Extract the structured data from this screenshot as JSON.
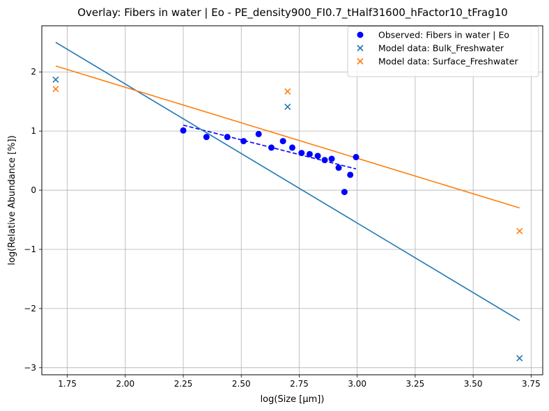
{
  "chart_data": {
    "type": "scatter",
    "title": "Overlay: Fibers in water | Eo - PE_density900_FI0.7_tHalf31600_hFactor10_tFrag10",
    "xlabel": "log(Size [µm])",
    "ylabel": "log(Relative Abundance [%])",
    "xlim": [
      1.64,
      3.8
    ],
    "ylim": [
      -3.12,
      2.78
    ],
    "xticks": [
      1.75,
      2.0,
      2.25,
      2.5,
      2.75,
      3.0,
      3.25,
      3.5,
      3.75
    ],
    "xtick_labels": [
      "1.75",
      "2.00",
      "2.25",
      "2.50",
      "2.75",
      "3.00",
      "3.25",
      "3.50",
      "3.75"
    ],
    "yticks": [
      -3,
      -2,
      -1,
      0,
      1,
      2
    ],
    "ytick_labels": [
      "−3",
      "−2",
      "−1",
      "0",
      "1",
      "2"
    ],
    "grid": true,
    "legend_position": "top-right",
    "series": [
      {
        "name": "Observed: Fibers in water | Eo",
        "kind": "scatter-dot",
        "color": "#0000ff",
        "x": [
          2.25,
          2.35,
          2.44,
          2.51,
          2.575,
          2.63,
          2.68,
          2.72,
          2.76,
          2.795,
          2.83,
          2.86,
          2.89,
          2.92,
          2.945,
          2.97,
          2.995
        ],
        "y": [
          1.01,
          0.9,
          0.9,
          0.83,
          0.95,
          0.72,
          0.83,
          0.72,
          0.63,
          0.61,
          0.58,
          0.51,
          0.53,
          0.38,
          -0.03,
          0.26,
          0.56
        ]
      },
      {
        "name": "Model data: Bulk_Freshwater",
        "kind": "scatter-x",
        "color": "#1f77b4",
        "x": [
          1.7,
          2.7,
          3.7
        ],
        "y": [
          1.87,
          1.41,
          -2.84
        ]
      },
      {
        "name": "Model data: Surface_Freshwater",
        "kind": "scatter-x",
        "color": "#ff7f0e",
        "x": [
          1.7,
          2.7,
          3.7
        ],
        "y": [
          1.71,
          1.67,
          -0.69
        ]
      }
    ],
    "fit_lines": [
      {
        "color": "#0000ff",
        "dashed": true,
        "x": [
          2.25,
          2.995
        ],
        "y": [
          1.1,
          0.36
        ]
      },
      {
        "color": "#1f77b4",
        "dashed": false,
        "x": [
          1.7,
          3.7
        ],
        "y": [
          2.5,
          -2.2
        ]
      },
      {
        "color": "#ff7f0e",
        "dashed": false,
        "x": [
          1.7,
          3.7
        ],
        "y": [
          2.1,
          -0.3
        ]
      }
    ]
  }
}
